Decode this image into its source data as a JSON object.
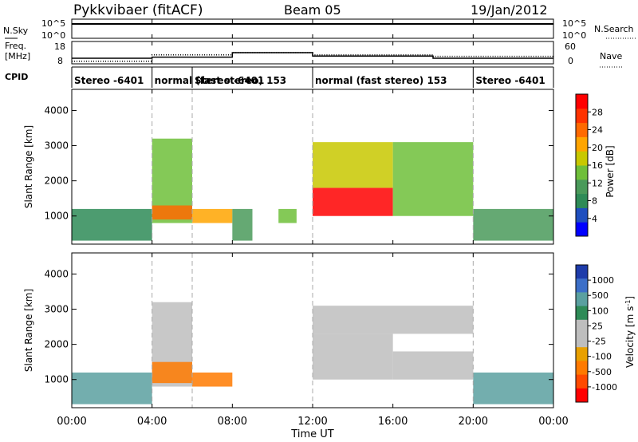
{
  "header": {
    "title": "Pykkvibaer (fitACF)",
    "beam": "Beam 05",
    "date": "19/Jan/2012"
  },
  "colors": {
    "power": [
      "#0000ff",
      "#1f4fbf",
      "#2e8b57",
      "#4a9a5a",
      "#6fbf3a",
      "#c8c800",
      "#ffa500",
      "#ff6a00",
      "#ff3300",
      "#ff0000"
    ],
    "velocity": [
      "#ff0000",
      "#ff4a00",
      "#ff7a00",
      "#e8a000",
      "#bebebe",
      "#bebebe",
      "#2e8b57",
      "#5aa0a0",
      "#3c6fc8",
      "#1e3caa"
    ]
  },
  "chart_data": [
    {
      "id": "noise",
      "type": "line",
      "series": [
        {
          "name": "N.Sky",
          "style": "solid",
          "x": [
            0,
            2,
            4,
            6,
            8,
            10,
            12,
            14,
            16,
            18,
            20,
            22,
            24
          ],
          "values": [
            100000,
            100000,
            100000,
            100000,
            100000,
            100000,
            100000,
            100000,
            100000,
            100000,
            100000,
            100000,
            100000
          ]
        },
        {
          "name": "N.Search",
          "style": "dotted",
          "x": [
            0,
            24
          ],
          "values": [
            100000,
            100000
          ]
        }
      ],
      "left_ticks": [
        "10^5",
        "10^0"
      ],
      "right_ticks": [
        "10^5",
        "10^0"
      ],
      "ylabel_left": "N.Sky",
      "ylabel_right": "N.Search"
    },
    {
      "id": "freq-nave",
      "type": "line",
      "series": [
        {
          "name": "Freq",
          "style": "solid",
          "x": [
            0,
            4,
            4,
            8,
            8,
            12,
            12,
            18,
            18,
            24
          ],
          "values": [
            10.5,
            10.5,
            11,
            11,
            13,
            13,
            11.5,
            11.5,
            10.5,
            10.5
          ]
        },
        {
          "name": "Nave",
          "style": "dotted",
          "x": [
            0,
            4,
            4,
            8,
            8,
            12,
            12,
            18,
            18,
            24
          ],
          "values": [
            7,
            7,
            24,
            24,
            30,
            30,
            24,
            24,
            20,
            20
          ]
        }
      ],
      "left_ticks": [
        "18",
        "8"
      ],
      "right_ticks": [
        "60",
        "0"
      ],
      "ylabel_left": "Freq.\n[MHz]",
      "ylabel_right": "Nave"
    },
    {
      "id": "cpid",
      "type": "table",
      "label": "CPID",
      "segments": [
        {
          "start": 0,
          "end": 4,
          "text": "Stereo -6401"
        },
        {
          "start": 4,
          "end": 6,
          "text": "normal (fast stereo) 153"
        },
        {
          "start": 6,
          "end": 12,
          "text": "Stereo -6401"
        },
        {
          "start": 12,
          "end": 20,
          "text": "normal (fast stereo) 153"
        },
        {
          "start": 20,
          "end": 24,
          "text": "Stereo -6401"
        }
      ]
    },
    {
      "id": "power",
      "type": "heatmap",
      "ylabel": "Slant Range [km]",
      "ylim": [
        200,
        4600
      ],
      "yticks": [
        1000,
        2000,
        3000,
        4000
      ],
      "colorbar": {
        "label": "Power [dB]",
        "min": 0,
        "max": 32,
        "ticks": [
          4,
          8,
          12,
          16,
          20,
          24,
          28
        ]
      },
      "regions": [
        {
          "x": [
            0,
            4
          ],
          "y": [
            300,
            1200
          ],
          "value": 8
        },
        {
          "x": [
            4,
            6
          ],
          "y": [
            800,
            3200
          ],
          "value": 14
        },
        {
          "x": [
            4,
            6
          ],
          "y": [
            900,
            1300
          ],
          "value": 24
        },
        {
          "x": [
            6,
            8
          ],
          "y": [
            800,
            1200
          ],
          "value": 22
        },
        {
          "x": [
            8,
            9
          ],
          "y": [
            300,
            1200
          ],
          "value": 10
        },
        {
          "x": [
            10.3,
            11.2
          ],
          "y": [
            800,
            1200
          ],
          "value": 14
        },
        {
          "x": [
            12,
            16
          ],
          "y": [
            1000,
            1800
          ],
          "value": 30
        },
        {
          "x": [
            12,
            16
          ],
          "y": [
            1800,
            3100
          ],
          "value": 16
        },
        {
          "x": [
            16,
            20
          ],
          "y": [
            1000,
            3100
          ],
          "value": 14
        },
        {
          "x": [
            20,
            24
          ],
          "y": [
            300,
            1200
          ],
          "value": 12
        }
      ]
    },
    {
      "id": "velocity",
      "type": "heatmap",
      "ylabel": "Slant Range [km]",
      "ylim": [
        200,
        4600
      ],
      "yticks": [
        1000,
        2000,
        3000,
        4000
      ],
      "colorbar": {
        "label": "Velocity [m s^-1]",
        "ticks": [
          1000,
          500,
          100,
          25,
          -25,
          -100,
          -500,
          -1000
        ]
      },
      "regions": [
        {
          "x": [
            0,
            4
          ],
          "y": [
            300,
            1200
          ],
          "value": 100
        },
        {
          "x": [
            4,
            6
          ],
          "y": [
            800,
            3200
          ],
          "value": 0
        },
        {
          "x": [
            4,
            6
          ],
          "y": [
            900,
            1500
          ],
          "value": -100
        },
        {
          "x": [
            6,
            8
          ],
          "y": [
            800,
            1200
          ],
          "value": -100
        },
        {
          "x": [
            12,
            16
          ],
          "y": [
            1000,
            2300
          ],
          "value": 0
        },
        {
          "x": [
            12,
            20
          ],
          "y": [
            2300,
            3100
          ],
          "value": 0
        },
        {
          "x": [
            16,
            20
          ],
          "y": [
            1000,
            1800
          ],
          "value": 0
        },
        {
          "x": [
            20,
            24
          ],
          "y": [
            300,
            1200
          ],
          "value": 100
        }
      ]
    }
  ],
  "axes": {
    "xlabel": "Time UT",
    "xticks": [
      "00:00",
      "04:00",
      "08:00",
      "12:00",
      "16:00",
      "20:00",
      "00:00"
    ],
    "xrange_hours": [
      0,
      24
    ]
  }
}
